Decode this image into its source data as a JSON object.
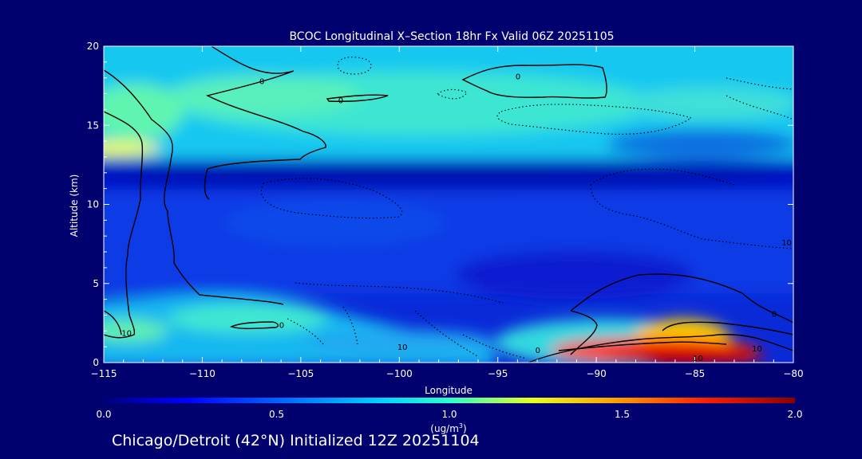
{
  "chart_data": {
    "type": "heatmap",
    "title": "BCOC Longitudinal X–Section 18hr  Fx Valid 06Z 20251105",
    "xlabel": "Longitude",
    "ylabel": "Altitude (km)",
    "xlim": [
      -115,
      -80
    ],
    "ylim": [
      0,
      20
    ],
    "x_ticks": [
      -115,
      -110,
      -105,
      -100,
      -95,
      -90,
      -85,
      -80
    ],
    "x_tick_labels": [
      "−115",
      "−110",
      "−105",
      "−100",
      "−95",
      "−90",
      "−85",
      "−80"
    ],
    "y_ticks": [
      0,
      5,
      10,
      15,
      20
    ],
    "y_tick_labels": [
      "0",
      "5",
      "10",
      "15",
      "20"
    ],
    "colorbar": {
      "min": 0.0,
      "max": 2.0,
      "ticks": [
        "0.0",
        "0.5",
        "1.0",
        "1.5",
        "2.0"
      ],
      "label_line1": "(ug/m",
      "label_sup": "3",
      "label_line2": ")"
    },
    "field_layers": [
      {
        "name": "surface-high-east",
        "lon_range": [
          -91,
          -80
        ],
        "alt_range": [
          0,
          1.5
        ],
        "value": 2.0
      },
      {
        "name": "surface-east",
        "lon_range": [
          -95,
          -80
        ],
        "alt_range": [
          0,
          2.5
        ],
        "value": 1.1
      },
      {
        "name": "boundary-layer",
        "lon_range": [
          -115,
          -95
        ],
        "alt_range": [
          0.5,
          4.5
        ],
        "value": 0.85
      },
      {
        "name": "mid-troposphere",
        "lon_range": [
          -115,
          -80
        ],
        "alt_range": [
          3,
          11
        ],
        "value": 0.4
      },
      {
        "name": "tropopause-band",
        "lon_range": [
          -115,
          -80
        ],
        "alt_range": [
          11,
          13
        ],
        "value": 0.2
      },
      {
        "name": "west-layer-13km",
        "lon_range": [
          -115,
          -112
        ],
        "alt_range": [
          12.8,
          14
        ],
        "value": 1.35
      },
      {
        "name": "upper-troposphere",
        "lon_range": [
          -115,
          -80
        ],
        "alt_range": [
          13,
          20
        ],
        "value": 0.8
      }
    ],
    "contour_labels": [
      {
        "text": "0",
        "lon": -107.1,
        "alt": 17.6
      },
      {
        "text": "0",
        "lon": -103.1,
        "alt": 16.4
      },
      {
        "text": "0",
        "lon": -94.1,
        "alt": 17.9
      },
      {
        "text": "10",
        "lon": -114.1,
        "alt": 1.7
      },
      {
        "text": "0",
        "lon": -106.1,
        "alt": 2.2
      },
      {
        "text": "10",
        "lon": -100.1,
        "alt": 0.8
      },
      {
        "text": "0",
        "lon": -93.1,
        "alt": 0.6
      },
      {
        "text": "10",
        "lon": -85.1,
        "alt": 0.1
      },
      {
        "text": "10",
        "lon": -82.1,
        "alt": 0.7
      },
      {
        "text": "0",
        "lon": -81.1,
        "alt": 2.9
      },
      {
        "text": "10",
        "lon": -80.6,
        "alt": 7.4
      }
    ]
  },
  "footer": {
    "run_info": "Chicago/Detroit (42°N) Initialized 12Z 20251104"
  }
}
